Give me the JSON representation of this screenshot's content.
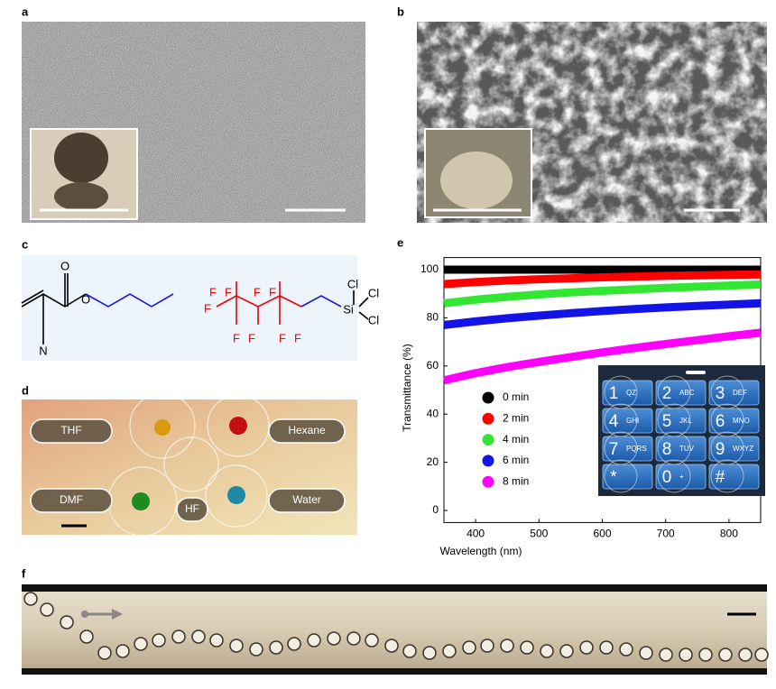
{
  "panel_labels": [
    "a",
    "b",
    "c",
    "d",
    "e",
    "f"
  ],
  "panel_c": {
    "atoms": [
      "O",
      "O",
      "N",
      "F",
      "F",
      "F",
      "F",
      "F",
      "F",
      "F",
      "F",
      "F",
      "Si",
      "Cl",
      "Cl",
      "Cl"
    ]
  },
  "panel_d": {
    "labels": [
      "THF",
      "Hexane",
      "DMF",
      "HF",
      "Water"
    ]
  },
  "chart_data": {
    "type": "line",
    "x_label": "Wavelength (nm)",
    "y_label": "Transmittance (%)",
    "x": [
      350,
      400,
      450,
      500,
      550,
      600,
      650,
      700,
      750,
      800,
      850
    ],
    "series": [
      {
        "name": "0 min",
        "color": "#000000",
        "values": [
          100,
          100,
          100,
          100,
          100,
          100,
          100,
          100,
          100,
          100,
          100
        ]
      },
      {
        "name": "2 min",
        "color": "#ff0000",
        "values": [
          94,
          94.8,
          95.5,
          96,
          96.4,
          96.8,
          97.1,
          97.4,
          97.6,
          97.8,
          98
        ]
      },
      {
        "name": "4 min",
        "color": "#33e633",
        "values": [
          86,
          87.5,
          88.7,
          89.7,
          90.5,
          91.2,
          91.8,
          92.4,
          92.9,
          93.4,
          93.8
        ]
      },
      {
        "name": "6 min",
        "color": "#1414e6",
        "values": [
          77,
          78.5,
          79.8,
          80.9,
          81.9,
          82.8,
          83.6,
          84.3,
          84.9,
          85.5,
          86
        ]
      },
      {
        "name": "8 min",
        "color": "#ff00ff",
        "values": [
          54,
          57,
          59.5,
          61.7,
          63.7,
          65.6,
          67.4,
          69.1,
          70.7,
          72.3,
          73.8
        ]
      }
    ],
    "xlim": [
      350,
      850
    ],
    "xticks": [
      400,
      500,
      600,
      700,
      800
    ],
    "ylim": [
      -5,
      105
    ],
    "yticks": [
      0,
      20,
      40,
      60,
      80,
      100
    ]
  },
  "keypad": [
    {
      "digit": "1",
      "letters": "QZ"
    },
    {
      "digit": "2",
      "letters": "ABC"
    },
    {
      "digit": "3",
      "letters": "DEF"
    },
    {
      "digit": "4",
      "letters": "GHI"
    },
    {
      "digit": "5",
      "letters": "JKL"
    },
    {
      "digit": "6",
      "letters": "MNO"
    },
    {
      "digit": "7",
      "letters": "PQRS"
    },
    {
      "digit": "8",
      "letters": "TUV"
    },
    {
      "digit": "9",
      "letters": "WXYZ"
    },
    {
      "digit": "*"
    },
    {
      "digit": "0",
      "letters": "+"
    },
    {
      "digit": "#"
    }
  ]
}
